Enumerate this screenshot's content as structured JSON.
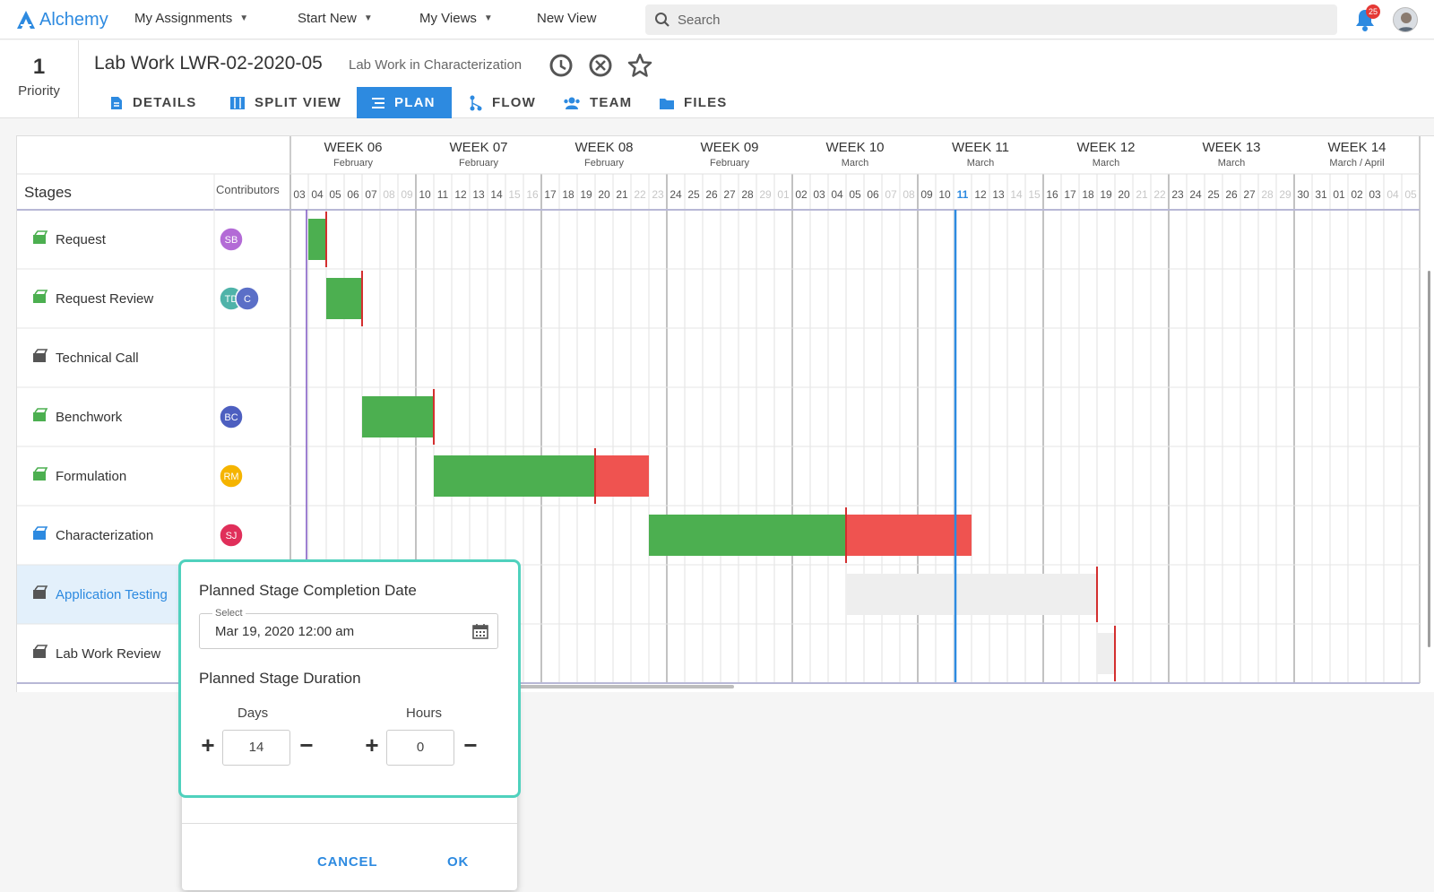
{
  "app": {
    "name": "Alchemy"
  },
  "nav": [
    {
      "label": "My Assignments",
      "dropdown": true
    },
    {
      "label": "Start New",
      "dropdown": true
    },
    {
      "label": "My Views",
      "dropdown": true
    },
    {
      "label": "New View",
      "dropdown": false
    }
  ],
  "search": {
    "placeholder": "Search"
  },
  "notifications": {
    "count": "25"
  },
  "record": {
    "priority_value": "1",
    "priority_label": "Priority",
    "title": "Lab Work LWR-02-2020-05",
    "subtitle": "Lab Work in Characterization"
  },
  "tabs": [
    {
      "label": "DETAILS",
      "active": false,
      "icon": "details-icon"
    },
    {
      "label": "SPLIT VIEW",
      "active": false,
      "icon": "split-view-icon"
    },
    {
      "label": "PLAN",
      "active": true,
      "icon": "plan-icon"
    },
    {
      "label": "FLOW",
      "active": false,
      "icon": "flow-icon"
    },
    {
      "label": "TEAM",
      "active": false,
      "icon": "team-icon"
    },
    {
      "label": "FILES",
      "active": false,
      "icon": "files-icon"
    }
  ],
  "gantt": {
    "stages_header": "Stages",
    "contributors_header": "Contributors",
    "weeks": [
      {
        "label": "WEEK 06",
        "month": "February"
      },
      {
        "label": "WEEK 07",
        "month": "February"
      },
      {
        "label": "WEEK 08",
        "month": "February"
      },
      {
        "label": "WEEK 09",
        "month": "February"
      },
      {
        "label": "WEEK 10",
        "month": "March"
      },
      {
        "label": "WEEK 11",
        "month": "March"
      },
      {
        "label": "WEEK 12",
        "month": "March"
      },
      {
        "label": "WEEK 13",
        "month": "March"
      },
      {
        "label": "WEEK 14",
        "month": "March / April"
      }
    ],
    "days": [
      "03",
      "04",
      "05",
      "06",
      "07",
      "08",
      "09",
      "10",
      "11",
      "12",
      "13",
      "14",
      "15",
      "16",
      "17",
      "18",
      "19",
      "20",
      "21",
      "22",
      "23",
      "24",
      "25",
      "26",
      "27",
      "28",
      "29",
      "01",
      "02",
      "03",
      "04",
      "05",
      "06",
      "07",
      "08",
      "09",
      "10",
      "11",
      "12",
      "13",
      "14",
      "15",
      "16",
      "17",
      "18",
      "19",
      "20",
      "21",
      "22",
      "23",
      "24",
      "25",
      "26",
      "27",
      "28",
      "29",
      "30",
      "31",
      "01",
      "02",
      "03",
      "04",
      "05"
    ],
    "today_index": 37,
    "stages": [
      {
        "name": "Request",
        "status": "done",
        "contributors": [
          {
            "initials": "SB",
            "color": "#b36bd6"
          }
        ],
        "bar": {
          "start": 1,
          "green": 1,
          "red": 0,
          "grey": 0
        }
      },
      {
        "name": "Request Review",
        "status": "done",
        "contributors": [
          {
            "initials": "TD",
            "color": "#4fb3a9"
          },
          {
            "initials": "C",
            "color": "#5b6fc7"
          }
        ],
        "bar": {
          "start": 2,
          "green": 2,
          "red": 0,
          "grey": 0
        }
      },
      {
        "name": "Technical Call",
        "status": "pending",
        "contributors": [],
        "bar": null
      },
      {
        "name": "Benchwork",
        "status": "done",
        "contributors": [
          {
            "initials": "BC",
            "color": "#4d5fc0"
          }
        ],
        "bar": {
          "start": 4,
          "green": 4,
          "red": 0,
          "grey": 0
        }
      },
      {
        "name": "Formulation",
        "status": "done",
        "contributors": [
          {
            "initials": "RM",
            "color": "#f5b400"
          }
        ],
        "bar": {
          "start": 8,
          "green": 9,
          "red": 3,
          "grey": 0
        }
      },
      {
        "name": "Characterization",
        "status": "active",
        "contributors": [
          {
            "initials": "SJ",
            "color": "#e02f5a"
          }
        ],
        "bar": {
          "start": 20,
          "green": 11,
          "red": 7,
          "grey": 0
        }
      },
      {
        "name": "Application Testing",
        "status": "selected",
        "contributors": [],
        "bar": {
          "start": 31,
          "green": 0,
          "red": 0,
          "grey": 14
        }
      },
      {
        "name": "Lab Work Review",
        "status": "pending",
        "contributors": [],
        "bar": {
          "start": 45,
          "green": 0,
          "red": 0,
          "grey": 1
        }
      }
    ]
  },
  "popup": {
    "completion_heading": "Planned Stage Completion Date",
    "date_label": "Select",
    "date_value": "Mar 19, 2020 12:00 am",
    "duration_heading": "Planned Stage Duration",
    "days_label": "Days",
    "days_value": "14",
    "hours_label": "Hours",
    "hours_value": "0",
    "cancel_label": "CANCEL",
    "ok_label": "OK"
  },
  "colors": {
    "accent": "#2d8ae0",
    "bar_green": "#4caf50",
    "bar_red": "#ef5350",
    "bar_grey": "#eeeeee",
    "deadline": "#d32f2f",
    "popup_border": "#4fd1bd",
    "selected_row": "#e3f0fb"
  }
}
